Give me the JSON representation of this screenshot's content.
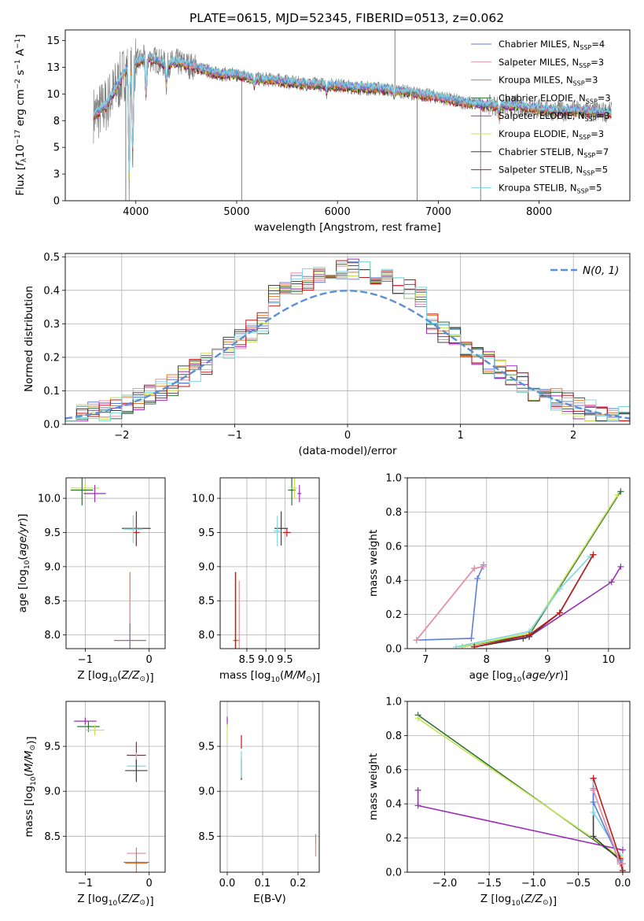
{
  "figure": {
    "title": "PLATE=0615, MJD=52345, FIBERID=0513, z=0.062"
  },
  "colors": {
    "chabrier_miles": "#5b7fd6",
    "salpeter_miles": "#e58fb2",
    "kroupa_miles": "#e07a30",
    "chabrier_elodie": "#2e6f3a",
    "salpeter_elodie": "#9b2fb5",
    "kroupa_elodie": "#c7e254",
    "chabrier_stelib": "#404040",
    "salpeter_stelib": "#c0191a",
    "kroupa_stelib": "#7fd6e0",
    "data": "#808080",
    "gaussian": "#5b8fd6",
    "grid": "#b0b0b0"
  },
  "legend_models": [
    {
      "name": "Chabrier MILES",
      "nssp": "4",
      "color": "#5b7fd6"
    },
    {
      "name": "Salpeter MILES",
      "nssp": "3",
      "color": "#e58fb2"
    },
    {
      "name": "Kroupa MILES",
      "nssp": "3",
      "color": "#e07a30"
    },
    {
      "name": "Chabrier ELODIE",
      "nssp": "3",
      "color": "#2e6f3a"
    },
    {
      "name": "Salpeter ELODIE",
      "nssp": "3",
      "color": "#9b2fb5"
    },
    {
      "name": "Kroupa ELODIE",
      "nssp": "3",
      "color": "#c7e254"
    },
    {
      "name": "Chabrier STELIB",
      "nssp": "7",
      "color": "#404040"
    },
    {
      "name": "Salpeter STELIB",
      "nssp": "5",
      "color": "#c0191a"
    },
    {
      "name": "Kroupa STELIB",
      "nssp": "5",
      "color": "#7fd6e0"
    }
  ],
  "nssp_prefix": "N",
  "nssp_sub": "SSP",
  "chart_data": [
    {
      "id": "spectrum",
      "type": "line",
      "xlabel": "wavelength [Angstrom, rest frame]",
      "ylabel": "Flux [fλ10⁻¹⁷ erg cm⁻² s⁻¹ A⁻¹]",
      "xlim": [
        3300,
        8900
      ],
      "ylim": [
        0,
        16
      ],
      "xticks": [
        4000,
        5000,
        6000,
        7000,
        8000
      ],
      "yticks": [
        0.0,
        2.5,
        5.0,
        7.5,
        10.0,
        12.5,
        15.0
      ],
      "continuum": [
        [
          3600,
          8.1
        ],
        [
          3700,
          8.9
        ],
        [
          3800,
          10.5
        ],
        [
          3900,
          12.2
        ],
        [
          4000,
          12.9
        ],
        [
          4100,
          13.4
        ],
        [
          4200,
          13.2
        ],
        [
          4300,
          12.7
        ],
        [
          4400,
          13.0
        ],
        [
          4600,
          12.5
        ],
        [
          4800,
          11.9
        ],
        [
          5000,
          11.8
        ],
        [
          5200,
          11.4
        ],
        [
          5400,
          11.3
        ],
        [
          5600,
          11.0
        ],
        [
          5800,
          10.9
        ],
        [
          6000,
          10.8
        ],
        [
          6200,
          10.6
        ],
        [
          6400,
          10.5
        ],
        [
          6600,
          10.3
        ],
        [
          6800,
          10.0
        ],
        [
          7000,
          9.7
        ],
        [
          7200,
          9.3
        ],
        [
          7400,
          9.0
        ],
        [
          7600,
          8.9
        ],
        [
          7800,
          8.9
        ],
        [
          8000,
          8.6
        ],
        [
          8200,
          8.4
        ],
        [
          8400,
          8.4
        ],
        [
          8600,
          8.3
        ],
        [
          8700,
          8.3
        ]
      ],
      "absorption": [
        [
          3934,
          2.5
        ],
        [
          3969,
          4.6
        ],
        [
          4102,
          10.0
        ],
        [
          4304,
          11.0
        ],
        [
          5175,
          10.8
        ],
        [
          5893,
          10.2
        ],
        [
          6563,
          9.8
        ],
        [
          7605,
          8.0
        ]
      ],
      "data_spikes": [
        [
          3900,
          0.0
        ],
        [
          5050,
          0.0
        ],
        [
          6790,
          0.0
        ],
        [
          7420,
          0.0
        ],
        [
          6570,
          16.0
        ]
      ],
      "grid": false,
      "legend_loc": "upper right"
    },
    {
      "id": "residuals",
      "type": "line",
      "xlabel": "(data-model)/error",
      "ylabel": "Normed distribution",
      "xlim": [
        -2.5,
        2.5
      ],
      "ylim": [
        0,
        0.51
      ],
      "xticks": [
        -2,
        -1,
        0,
        1,
        2
      ],
      "yticks": [
        0.0,
        0.1,
        0.2,
        0.3,
        0.4,
        0.5
      ],
      "gaussian_label": "N(0, 1)",
      "grid": true,
      "legend_loc": "upper right"
    },
    {
      "id": "age_vs_Z",
      "type": "scatter",
      "xlabel": "Z [log10(Z/Z⊙)]",
      "ylabel": "age  [log10(age/yr)]",
      "xlim": [
        -1.3,
        0.25
      ],
      "ylim": [
        7.8,
        10.3
      ],
      "xticks": [
        -1,
        0
      ],
      "yticks": [
        8.0,
        8.5,
        9.0,
        9.5,
        10.0
      ],
      "points": [
        {
          "model": "kroupa_elodie",
          "x": -1.0,
          "y": 10.15,
          "dx": 0.45,
          "dy": 0.15
        },
        {
          "model": "chabrier_elodie",
          "x": -1.05,
          "y": 10.12,
          "dx": 0.35,
          "dy": 0.45
        },
        {
          "model": "salpeter_elodie",
          "x": -0.85,
          "y": 10.07,
          "dx": 0.35,
          "dy": 0.25
        },
        {
          "model": "chabrier_stelib",
          "x": -0.2,
          "y": 9.56,
          "dx": 0.45,
          "dy": 0.5
        },
        {
          "model": "salpeter_stelib",
          "x": -0.2,
          "y": 9.5,
          "dx": 0.1,
          "dy": 0.4
        },
        {
          "model": "kroupa_stelib",
          "x": -0.25,
          "y": 9.55,
          "dx": 0.3,
          "dy": 0.4
        },
        {
          "model": "kroupa_miles",
          "x": -0.3,
          "y": 7.92,
          "dx": 0.5,
          "dy": 2.0
        },
        {
          "model": "salpeter_miles",
          "x": -0.3,
          "y": 7.92,
          "dx": 0.5,
          "dy": 1.2
        },
        {
          "model": "chabrier_miles",
          "x": -0.3,
          "y": 7.92,
          "dx": 0.5,
          "dy": 0.5
        }
      ],
      "grid": true
    },
    {
      "id": "age_vs_mass",
      "type": "scatter",
      "xlabel": "mass [log10(M/M⊙)]",
      "ylabel": "",
      "xlim": [
        7.8,
        10.4
      ],
      "ylim": [
        7.8,
        10.3
      ],
      "xticks": [
        8.5,
        9.0,
        9.5
      ],
      "yticks": [
        8.0,
        8.5,
        9.0,
        9.5,
        10.0
      ],
      "points": [
        {
          "model": "kroupa_miles",
          "x": 8.21,
          "y": 7.92,
          "dx": 0.15,
          "dy": 2.0
        },
        {
          "model": "salpeter_stelib",
          "x": 8.2,
          "y": 7.92,
          "dx": 0.05,
          "dy": 2.0
        },
        {
          "model": "salpeter_miles",
          "x": 8.3,
          "y": 7.92,
          "dx": 0.05,
          "dy": 1.75
        },
        {
          "model": "chabrier_stelib",
          "x": 9.4,
          "y": 9.56,
          "dx": 0.35,
          "dy": 0.5
        },
        {
          "model": "kroupa_stelib",
          "x": 9.3,
          "y": 9.52,
          "dx": 0.2,
          "dy": 0.45
        },
        {
          "model": "salpeter_stelib",
          "x": 9.55,
          "y": 9.5,
          "dx": 0.2,
          "dy": 0.12
        },
        {
          "model": "chabrier_elodie",
          "x": 9.68,
          "y": 10.12,
          "dx": 0.2,
          "dy": 0.45
        },
        {
          "model": "kroupa_elodie",
          "x": 9.75,
          "y": 10.15,
          "dx": 0.15,
          "dy": 0.3
        },
        {
          "model": "salpeter_elodie",
          "x": 9.88,
          "y": 10.07,
          "dx": 0.1,
          "dy": 0.25
        }
      ],
      "grid": true
    },
    {
      "id": "massweight_vs_age",
      "type": "line",
      "xlabel": "age  [log10(age/yr)]",
      "ylabel": "mass weight",
      "xlim": [
        6.7,
        10.35
      ],
      "ylim": [
        0,
        1.0
      ],
      "xticks": [
        7,
        8,
        9,
        10
      ],
      "yticks": [
        0.0,
        0.2,
        0.4,
        0.6,
        0.8,
        1.0
      ],
      "series": [
        {
          "model": "chabrier_miles",
          "x": [
            6.85,
            7.75,
            7.85,
            7.95
          ],
          "y": [
            0.05,
            0.06,
            0.41,
            0.49
          ]
        },
        {
          "model": "kroupa_miles",
          "x": [
            6.85,
            7.8,
            7.95
          ],
          "y": [
            0.05,
            0.47,
            0.48
          ]
        },
        {
          "model": "salpeter_miles",
          "x": [
            6.85,
            7.8,
            7.95
          ],
          "y": [
            0.05,
            0.47,
            0.48
          ]
        },
        {
          "model": "chabrier_elodie",
          "x": [
            7.6,
            8.7,
            10.2
          ],
          "y": [
            0.01,
            0.08,
            0.92
          ]
        },
        {
          "model": "kroupa_elodie",
          "x": [
            7.6,
            8.7,
            10.15
          ],
          "y": [
            0.01,
            0.09,
            0.9
          ]
        },
        {
          "model": "salpeter_elodie",
          "x": [
            7.8,
            8.7,
            10.05,
            10.2
          ],
          "y": [
            0.01,
            0.07,
            0.39,
            0.48
          ]
        },
        {
          "model": "chabrier_stelib",
          "x": [
            7.8,
            8.6,
            8.7,
            9.2,
            9.75
          ],
          "y": [
            0.01,
            0.06,
            0.07,
            0.21,
            0.55
          ]
        },
        {
          "model": "kroupa_stelib",
          "x": [
            7.5,
            8.7,
            9.2,
            9.7
          ],
          "y": [
            0.01,
            0.1,
            0.35,
            0.54
          ]
        },
        {
          "model": "salpeter_stelib",
          "x": [
            7.8,
            8.7,
            9.2,
            9.75
          ],
          "y": [
            0.01,
            0.08,
            0.21,
            0.55
          ]
        }
      ],
      "grid": true
    },
    {
      "id": "mass_vs_Z",
      "type": "scatter",
      "xlabel": "Z [log10(Z/Z⊙)]",
      "ylabel": "mass [log10(M/M⊙)]",
      "xlim": [
        -1.3,
        0.25
      ],
      "ylim": [
        8.1,
        10.0
      ],
      "xticks": [
        -1,
        0
      ],
      "yticks": [
        8.5,
        9.0,
        9.5
      ],
      "points": [
        {
          "model": "salpeter_elodie",
          "x": -1.0,
          "y": 9.78,
          "dx": 0.35,
          "dy": 0.08
        },
        {
          "model": "chabrier_elodie",
          "x": -0.95,
          "y": 9.72,
          "dx": 0.35,
          "dy": 0.12
        },
        {
          "model": "kroupa_elodie",
          "x": -0.85,
          "y": 9.68,
          "dx": 0.3,
          "dy": 0.12
        },
        {
          "model": "salpeter_stelib",
          "x": -0.2,
          "y": 9.4,
          "dx": 0.3,
          "dy": 0.3
        },
        {
          "model": "kroupa_stelib",
          "x": -0.2,
          "y": 9.28,
          "dx": 0.3,
          "dy": 0.3
        },
        {
          "model": "chabrier_stelib",
          "x": -0.2,
          "y": 9.23,
          "dx": 0.35,
          "dy": 0.25
        },
        {
          "model": "salpeter_miles",
          "x": -0.2,
          "y": 8.31,
          "dx": 0.3,
          "dy": 0.04
        },
        {
          "model": "kroupa_miles",
          "x": -0.2,
          "y": 8.2,
          "dx": 0.35,
          "dy": 0.35
        },
        {
          "model": "chabrier_miles",
          "x": -0.2,
          "y": 8.21,
          "dx": 0.4,
          "dy": 0.04
        }
      ],
      "grid": true
    },
    {
      "id": "mass_vs_ebv",
      "type": "scatter",
      "xlabel": "E(B-V)",
      "ylabel": "",
      "xlim": [
        -0.02,
        0.26
      ],
      "ylim": [
        8.1,
        10.0
      ],
      "xticks": [
        0.0,
        0.1,
        0.2
      ],
      "yticks": [
        8.5,
        9.0,
        9.5
      ],
      "points": [
        {
          "model": "salpeter_elodie",
          "x": 0.0,
          "y": 9.78,
          "dx": 0.0,
          "dy": 0.1
        },
        {
          "model": "kroupa_elodie",
          "x": 0.0,
          "y": 9.65,
          "dx": 0.0,
          "dy": 0.2
        },
        {
          "model": "chabrier_stelib",
          "x": 0.04,
          "y": 9.25,
          "dx": 0.0,
          "dy": 0.25
        },
        {
          "model": "salpeter_stelib",
          "x": 0.04,
          "y": 9.55,
          "dx": 0.0,
          "dy": 0.15
        },
        {
          "model": "kroupa_stelib",
          "x": 0.04,
          "y": 9.3,
          "dx": 0.0,
          "dy": 0.3
        },
        {
          "model": "kroupa_miles",
          "x": 0.25,
          "y": 8.4,
          "dx": 0.0,
          "dy": 0.25
        },
        {
          "model": "salpeter_miles",
          "x": 0.25,
          "y": 8.35,
          "dx": 0.0,
          "dy": 0.15
        }
      ],
      "grid": true
    },
    {
      "id": "massweight_vs_Z",
      "type": "line",
      "xlabel": "Z [log10(Z/Z⊙)]",
      "ylabel": "mass weight",
      "xlim": [
        -2.42,
        0.08
      ],
      "ylim": [
        0,
        1.0
      ],
      "xticks": [
        -2.0,
        -1.5,
        -1.0,
        -0.5,
        0.0
      ],
      "yticks": [
        0.0,
        0.2,
        0.4,
        0.6,
        0.8,
        1.0
      ],
      "series": [
        {
          "model": "chabrier_elodie",
          "x": [
            -2.3,
            -0.03,
            0.0
          ],
          "y": [
            0.92,
            0.08,
            0.0
          ]
        },
        {
          "model": "kroupa_elodie",
          "x": [
            -2.3,
            -0.03,
            0.0
          ],
          "y": [
            0.9,
            0.09,
            0.01
          ]
        },
        {
          "model": "salpeter_elodie",
          "x": [
            -2.3,
            -2.3,
            0.0
          ],
          "y": [
            0.48,
            0.39,
            0.13
          ]
        },
        {
          "model": "chabrier_stelib",
          "x": [
            -0.33,
            -0.33,
            -0.03,
            0.0
          ],
          "y": [
            0.55,
            0.21,
            0.07,
            0.01
          ]
        },
        {
          "model": "kroupa_stelib",
          "x": [
            -0.33,
            -0.33,
            -0.03,
            0.0
          ],
          "y": [
            0.54,
            0.35,
            0.1,
            0.01
          ]
        },
        {
          "model": "salpeter_stelib",
          "x": [
            -0.33,
            -0.03,
            0.0
          ],
          "y": [
            0.55,
            0.08,
            0.01
          ]
        },
        {
          "model": "kroupa_miles",
          "x": [
            -0.33,
            -0.03,
            0.0
          ],
          "y": [
            0.48,
            0.05,
            0.05
          ]
        },
        {
          "model": "chabrier_miles",
          "x": [
            -0.33,
            -0.33,
            -0.03,
            0.0
          ],
          "y": [
            0.49,
            0.41,
            0.06,
            0.05
          ]
        },
        {
          "model": "salpeter_miles",
          "x": [
            -0.33,
            -0.03,
            0.0
          ],
          "y": [
            0.48,
            0.05,
            0.05
          ]
        }
      ],
      "grid": true
    }
  ]
}
